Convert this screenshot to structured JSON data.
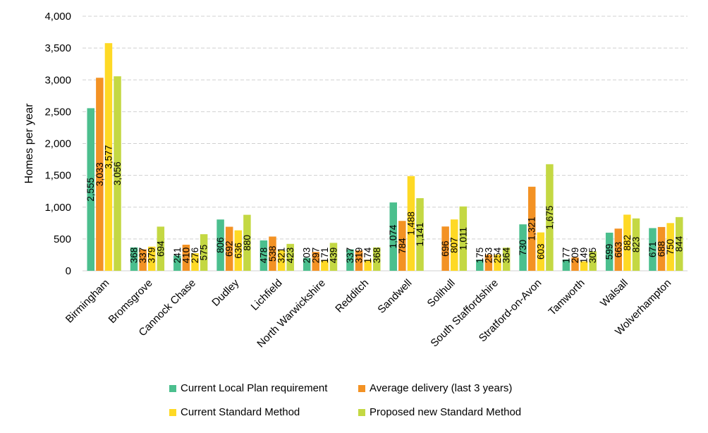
{
  "chart_data": {
    "type": "bar",
    "title": "",
    "xlabel": "",
    "ylabel": "Homes per year",
    "ylim": [
      0,
      4000
    ],
    "yticks": [
      "0",
      "500",
      "1,000",
      "1,500",
      "2,000",
      "2,500",
      "3,000",
      "3,500",
      "4,000"
    ],
    "grid": true,
    "legend_position": "bottom",
    "categories": [
      "Birmingham",
      "Bromsgrove",
      "Cannock Chase",
      "Dudley",
      "Lichfield",
      "North Warwickshire",
      "Redditch",
      "Sandwell",
      "Solihull",
      "South Staffordshire",
      "Stratford-on-Avon",
      "Tamworth",
      "Walsall",
      "Wolverhampton"
    ],
    "series": [
      {
        "name": "Current Local Plan requirement",
        "color": "#4bbf8e",
        "values": [
          2555,
          368,
          241,
          806,
          478,
          203,
          337,
          1074,
          null,
          175,
          730,
          177,
          599,
          671
        ],
        "labels": [
          "2,555",
          "368",
          "241",
          "806",
          "478",
          "203",
          "337",
          "1,074",
          "",
          "175",
          "730",
          "177",
          "599",
          "671"
        ]
      },
      {
        "name": "Average delivery (last 3 years)",
        "color": "#f39224",
        "values": [
          3033,
          337,
          410,
          692,
          538,
          297,
          319,
          784,
          696,
          253,
          1321,
          209,
          663,
          688
        ],
        "labels": [
          "3,033",
          "337",
          "410",
          "692",
          "538",
          "297",
          "319",
          "784",
          "696",
          "253",
          "1,321",
          "209",
          "663",
          "688"
        ]
      },
      {
        "name": "Current Standard Method",
        "color": "#fed925",
        "values": [
          3577,
          379,
          276,
          636,
          321,
          171,
          174,
          1488,
          807,
          254,
          603,
          149,
          882,
          750
        ],
        "labels": [
          "3,577",
          "379",
          "276",
          "636",
          "321",
          "171",
          "174",
          "1,488",
          "807",
          "254",
          "603",
          "149",
          "882",
          "750"
        ]
      },
      {
        "name": "Proposed new Standard Method",
        "color": "#c4d843",
        "values": [
          3056,
          694,
          575,
          880,
          423,
          439,
          368,
          1141,
          1011,
          364,
          1675,
          305,
          823,
          844
        ],
        "labels": [
          "3,056",
          "694",
          "575",
          "880",
          "423",
          "439",
          "368",
          "1,141",
          "1,011",
          "364",
          "1,675",
          "305",
          "823",
          "844"
        ]
      }
    ]
  }
}
